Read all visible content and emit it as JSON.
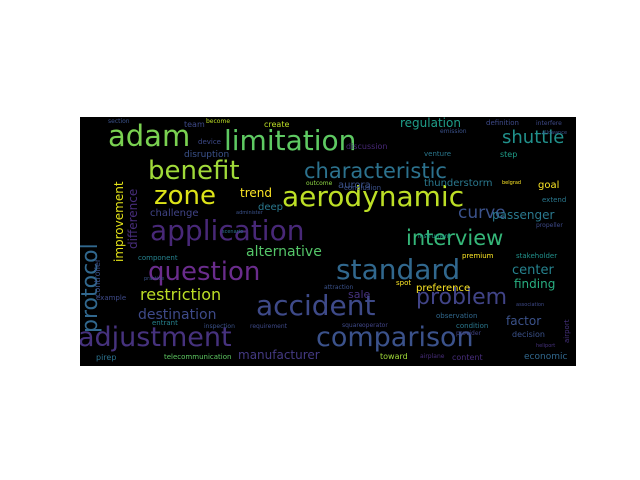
{
  "wordcloud": {
    "background": "#000000",
    "words": [
      {
        "text": "adjustment",
        "color": "#46327e"
      },
      {
        "text": "comparison",
        "color": "#3b528b"
      },
      {
        "text": "standard",
        "color": "#31688e"
      },
      {
        "text": "application",
        "color": "#482878"
      },
      {
        "text": "aerodynamic",
        "color": "#bddf26"
      },
      {
        "text": "limitation",
        "color": "#5ec962"
      },
      {
        "text": "accident",
        "color": "#3e4a89"
      },
      {
        "text": "question",
        "color": "#6a2c8c"
      },
      {
        "text": "benefit",
        "color": "#a0da39"
      },
      {
        "text": "characteristic",
        "color": "#2c728e"
      },
      {
        "text": "adam",
        "color": "#7ad151"
      },
      {
        "text": "interview",
        "color": "#35b779"
      },
      {
        "text": "problem",
        "color": "#414487"
      },
      {
        "text": "zone",
        "color": "#dde318"
      },
      {
        "text": "shuttle",
        "color": "#21918c"
      },
      {
        "text": "protocol",
        "color": "#31688e"
      },
      {
        "text": "curve",
        "color": "#3b528b"
      },
      {
        "text": "restriction",
        "color": "#bddf26"
      },
      {
        "text": "destination",
        "color": "#3e4a89"
      },
      {
        "text": "alternative",
        "color": "#54c568"
      },
      {
        "text": "improvement",
        "color": "#e5e419"
      },
      {
        "text": "difference",
        "color": "#472d7b"
      },
      {
        "text": "passenger",
        "color": "#2a788e"
      },
      {
        "text": "center",
        "color": "#26828e"
      },
      {
        "text": "finding",
        "color": "#28ae80"
      },
      {
        "text": "factor",
        "color": "#3b528b"
      },
      {
        "text": "manufacturer",
        "color": "#443a83"
      },
      {
        "text": "regulation",
        "color": "#1f9e89"
      },
      {
        "text": "trend",
        "color": "#fde725"
      },
      {
        "text": "challenge",
        "color": "#414487"
      },
      {
        "text": "aurora",
        "color": "#3b528b"
      },
      {
        "text": "thunderstorm",
        "color": "#2a788e"
      },
      {
        "text": "preference",
        "color": "#fde725"
      },
      {
        "text": "sale",
        "color": "#46327e"
      },
      {
        "text": "goal",
        "color": "#fde725"
      },
      {
        "text": "deep",
        "color": "#2a788e"
      },
      {
        "text": "disruption",
        "color": "#3b528b"
      },
      {
        "text": "team",
        "color": "#3e4a89"
      },
      {
        "text": "create",
        "color": "#bddf26"
      },
      {
        "text": "step",
        "color": "#1f9e89"
      },
      {
        "text": "discussion",
        "color": "#482878"
      },
      {
        "text": "conclusion",
        "color": "#3b528b"
      },
      {
        "text": "economic",
        "color": "#31688e"
      },
      {
        "text": "content",
        "color": "#472d7b"
      },
      {
        "text": "toward",
        "color": "#a0da39"
      },
      {
        "text": "decision",
        "color": "#3b528b"
      },
      {
        "text": "observation",
        "color": "#31688e"
      },
      {
        "text": "telecommunication",
        "color": "#5ec962"
      },
      {
        "text": "pirep",
        "color": "#2c728e"
      },
      {
        "text": "airplane",
        "color": "#472d7b"
      },
      {
        "text": "component",
        "color": "#26828e"
      },
      {
        "text": "example",
        "color": "#3e4a89"
      },
      {
        "text": "entrant",
        "color": "#26828e"
      },
      {
        "text": "premium",
        "color": "#fde725"
      },
      {
        "text": "spot",
        "color": "#fde725"
      },
      {
        "text": "stakeholder",
        "color": "#21918c"
      },
      {
        "text": "condition",
        "color": "#2a788e"
      },
      {
        "text": "square",
        "color": "#3e4a89"
      },
      {
        "text": "operator",
        "color": "#414487"
      },
      {
        "text": "requirement",
        "color": "#3e4a89"
      },
      {
        "text": "inspection",
        "color": "#3b528b"
      },
      {
        "text": "outcome",
        "color": "#8fd744"
      },
      {
        "text": "device",
        "color": "#3e4a89"
      },
      {
        "text": "become",
        "color": "#bddf26"
      },
      {
        "text": "section",
        "color": "#3b528b"
      },
      {
        "text": "venture",
        "color": "#2a788e"
      },
      {
        "text": "instrument",
        "color": "#1f9e89"
      },
      {
        "text": "propeller",
        "color": "#3e4a89"
      },
      {
        "text": "extend",
        "color": "#2a788e"
      },
      {
        "text": "definition",
        "color": "#3e4a89"
      },
      {
        "text": "emission",
        "color": "#3b528b"
      },
      {
        "text": "interfere",
        "color": "#3e4a89"
      },
      {
        "text": "allowance",
        "color": "#3b528b"
      },
      {
        "text": "heliport",
        "color": "#46327e"
      },
      {
        "text": "controller",
        "color": "#3b528b"
      },
      {
        "text": "airport",
        "color": "#46327e"
      },
      {
        "text": "association",
        "color": "#3e4a89"
      },
      {
        "text": "administer",
        "color": "#3b528b"
      },
      {
        "text": "scenario",
        "color": "#2c728e"
      },
      {
        "text": "provider",
        "color": "#414487"
      },
      {
        "text": "attraction",
        "color": "#3b528b"
      },
      {
        "text": "belgrad",
        "color": "#fde725"
      },
      {
        "text": "practice",
        "color": "#3b528b"
      }
    ]
  }
}
